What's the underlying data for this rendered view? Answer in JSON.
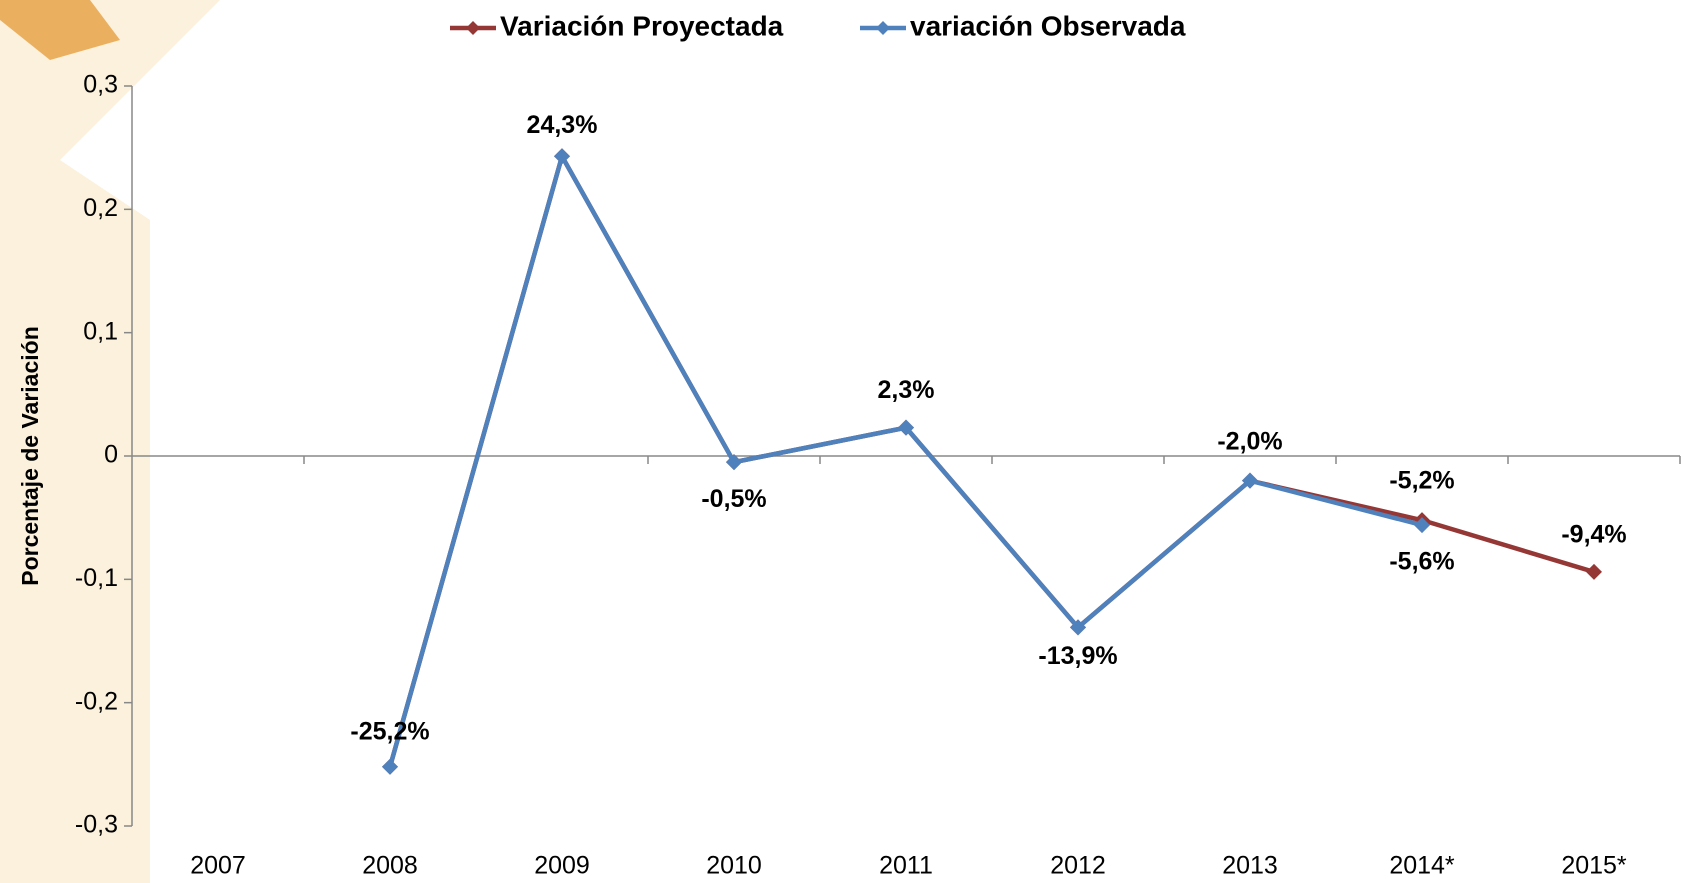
{
  "chart_data": {
    "type": "line",
    "y_label": "Porcentaje de Variación",
    "categories": [
      "2007",
      "2008",
      "2009",
      "2010",
      "2011",
      "2012",
      "2013",
      "2014*",
      "2015*"
    ],
    "series": [
      {
        "name": "Variación Proyectada",
        "color": "#953735",
        "values": [
          null,
          -0.252,
          0.243,
          -0.005,
          0.023,
          -0.139,
          -0.02,
          -0.052,
          -0.094
        ],
        "value_labels": [
          null,
          null,
          null,
          null,
          null,
          null,
          null,
          "-5,2%",
          "-9,4%"
        ],
        "label_color": "#c00000"
      },
      {
        "name": "variación Observada",
        "color": "#4f81bd",
        "values": [
          null,
          -0.252,
          0.243,
          -0.005,
          0.023,
          -0.139,
          -0.02,
          -0.056,
          null
        ],
        "value_labels": [
          null,
          "-25,2%",
          "24,3%",
          "-0,5%",
          "2,3%",
          "-13,9%",
          "-2,0%",
          "-5,6%",
          null
        ],
        "label_color": "#3e6aa8"
      }
    ],
    "ylim": [
      -0.3,
      0.3
    ],
    "yticks": [
      {
        "value": -0.3,
        "label": "-0,3"
      },
      {
        "value": -0.2,
        "label": "-0,2"
      },
      {
        "value": -0.1,
        "label": "-0,1"
      },
      0,
      {
        "value": 0.1,
        "label": "0,1"
      },
      {
        "value": 0.2,
        "label": "0,2"
      },
      {
        "value": 0.3,
        "label": "0,3"
      }
    ],
    "legend": "top"
  }
}
